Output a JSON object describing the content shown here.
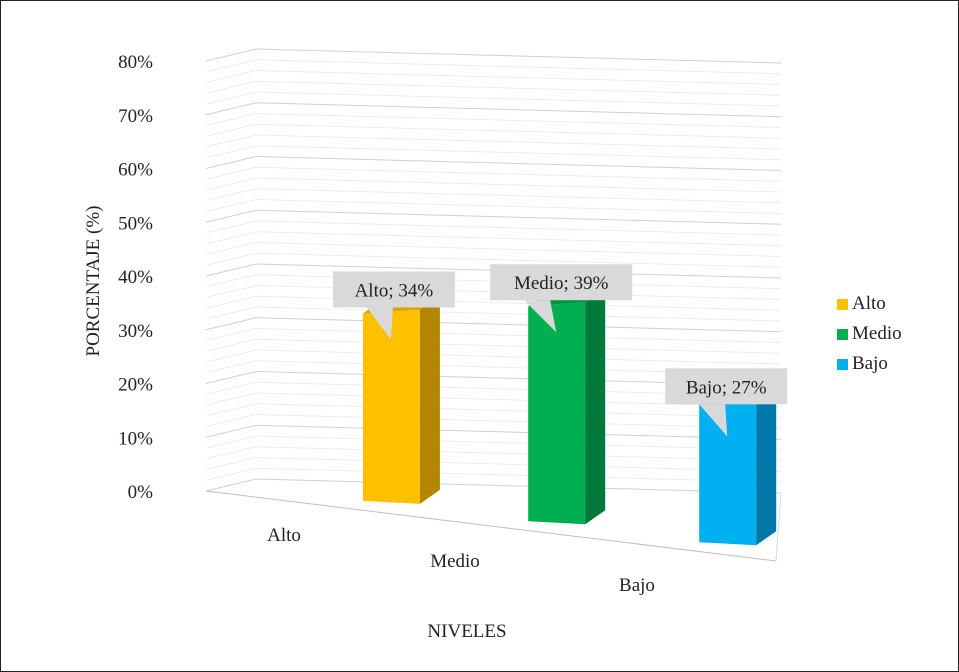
{
  "chart_data": {
    "type": "bar",
    "categories": [
      "Alto",
      "Medio",
      "Bajo"
    ],
    "values": [
      34,
      39,
      27
    ],
    "unit": "%",
    "data_labels": [
      "Alto; 34%",
      "Medio; 39%",
      "Bajo; 27%"
    ],
    "colors": [
      "#FFC000",
      "#00B050",
      "#00B0F0"
    ],
    "side_colors": [
      "#B38600",
      "#007A3A",
      "#0078A8"
    ],
    "top_colors": [
      "#D9A200",
      "#00963F",
      "#0095CC"
    ],
    "xlabel": "NIVELES",
    "ylabel": "PORCENTAJE (%)",
    "ylim": [
      0,
      80
    ],
    "yticks": [
      0,
      10,
      20,
      30,
      40,
      50,
      60,
      70,
      80
    ],
    "ytick_labels": [
      "0%",
      "10%",
      "20%",
      "30%",
      "40%",
      "50%",
      "60%",
      "70%",
      "80%"
    ],
    "grid": true,
    "legend_position": "right",
    "legend": [
      "Alto",
      "Medio",
      "Bajo"
    ]
  }
}
